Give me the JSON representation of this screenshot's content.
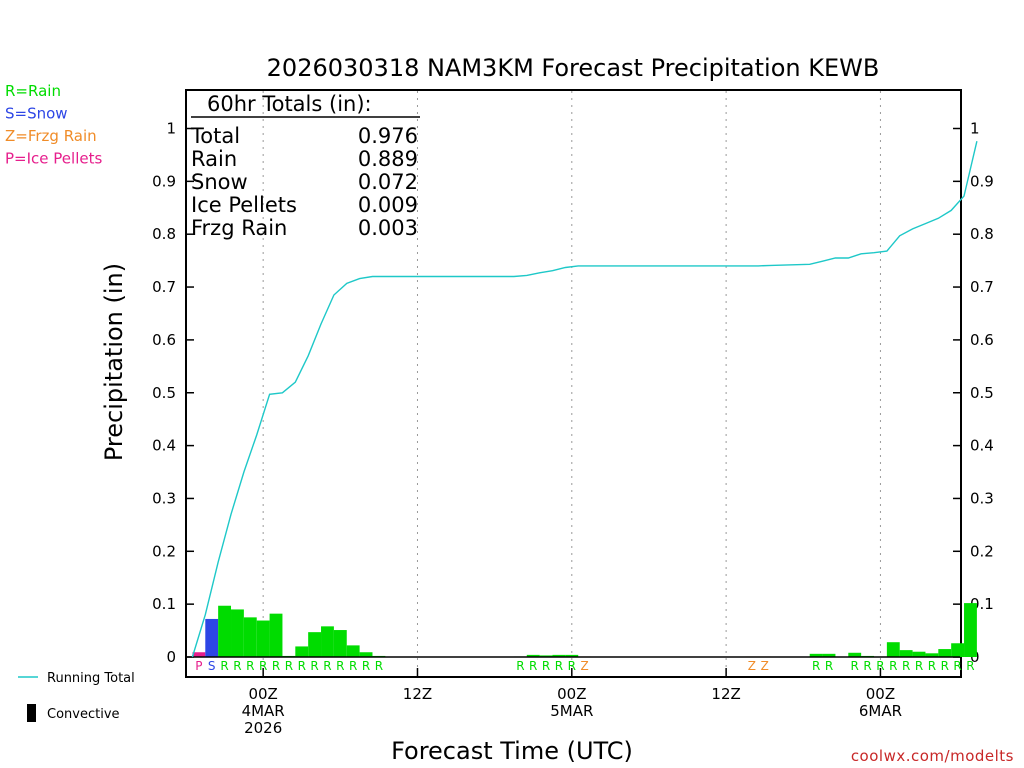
{
  "chart_data": {
    "type": "bar",
    "title": "2026030318 NAM3KM Forecast Precipitation KEWB",
    "xlabel": "Forecast Time (UTC)",
    "ylabel": "Precipitation (in)",
    "ylim": [
      0,
      1.05
    ],
    "yticks": [
      0,
      0.1,
      0.2,
      0.3,
      0.4,
      0.5,
      0.6,
      0.7,
      0.8,
      0.9,
      1
    ],
    "ytick_labels": [
      "0",
      "0.1",
      "0.2",
      "0.3",
      "0.4",
      "0.5",
      "0.6",
      "0.7",
      "0.8",
      "0.9",
      "1"
    ],
    "xlim_hours": [
      0,
      60
    ],
    "xticks": [
      {
        "hour": 6,
        "lines": [
          "00Z",
          "4MAR",
          "2026"
        ]
      },
      {
        "hour": 18,
        "lines": [
          "12Z"
        ]
      },
      {
        "hour": 30,
        "lines": [
          "00Z",
          "5MAR"
        ]
      },
      {
        "hour": 42,
        "lines": [
          "12Z"
        ]
      },
      {
        "hour": 54,
        "lines": [
          "00Z",
          "6MAR"
        ]
      }
    ],
    "bars": [
      {
        "hour": 1,
        "value": 0.009,
        "type": "P"
      },
      {
        "hour": 2,
        "value": 0.072,
        "type": "S"
      },
      {
        "hour": 3,
        "value": 0.097,
        "type": "R"
      },
      {
        "hour": 4,
        "value": 0.09,
        "type": "R"
      },
      {
        "hour": 5,
        "value": 0.075,
        "type": "R"
      },
      {
        "hour": 6,
        "value": 0.069,
        "type": "R"
      },
      {
        "hour": 7,
        "value": 0.082,
        "type": "R"
      },
      {
        "hour": 8,
        "value": 0.002,
        "type": "R"
      },
      {
        "hour": 9,
        "value": 0.02,
        "type": "R"
      },
      {
        "hour": 10,
        "value": 0.047,
        "type": "R"
      },
      {
        "hour": 11,
        "value": 0.058,
        "type": "R"
      },
      {
        "hour": 12,
        "value": 0.051,
        "type": "R"
      },
      {
        "hour": 13,
        "value": 0.022,
        "type": "R"
      },
      {
        "hour": 14,
        "value": 0.009,
        "type": "R"
      },
      {
        "hour": 15,
        "value": 0.002,
        "type": "R"
      },
      {
        "hour": 26,
        "value": 0.001,
        "type": "R"
      },
      {
        "hour": 27,
        "value": 0.004,
        "type": "R"
      },
      {
        "hour": 28,
        "value": 0.003,
        "type": "R"
      },
      {
        "hour": 29,
        "value": 0.004,
        "type": "R"
      },
      {
        "hour": 30,
        "value": 0.004,
        "type": "R"
      },
      {
        "hour": 31,
        "value": 0.001,
        "type": "Z"
      },
      {
        "hour": 44,
        "value": 0.001,
        "type": "Z"
      },
      {
        "hour": 45,
        "value": 0.001,
        "type": "Z"
      },
      {
        "hour": 49,
        "value": 0.006,
        "type": "R"
      },
      {
        "hour": 50,
        "value": 0.006,
        "type": "R"
      },
      {
        "hour": 52,
        "value": 0.008,
        "type": "R"
      },
      {
        "hour": 53,
        "value": 0.002,
        "type": "R"
      },
      {
        "hour": 54,
        "value": 0.001,
        "type": "R"
      },
      {
        "hour": 55,
        "value": 0.028,
        "type": "R"
      },
      {
        "hour": 56,
        "value": 0.013,
        "type": "R"
      },
      {
        "hour": 57,
        "value": 0.01,
        "type": "R"
      },
      {
        "hour": 58,
        "value": 0.007,
        "type": "R"
      },
      {
        "hour": 59,
        "value": 0.015,
        "type": "R"
      },
      {
        "hour": 60,
        "value": 0.026,
        "type": "R"
      },
      {
        "hour": 61,
        "value": 0.102,
        "type": "R"
      }
    ],
    "running_total": [
      [
        0.5,
        0.0
      ],
      [
        1.5,
        0.08
      ],
      [
        2.5,
        0.18
      ],
      [
        3.5,
        0.27
      ],
      [
        4.5,
        0.35
      ],
      [
        5.5,
        0.42
      ],
      [
        6.5,
        0.497
      ],
      [
        7.5,
        0.5
      ],
      [
        8.5,
        0.52
      ],
      [
        9.5,
        0.57
      ],
      [
        10.5,
        0.63
      ],
      [
        11.5,
        0.685
      ],
      [
        12.5,
        0.707
      ],
      [
        13.5,
        0.716
      ],
      [
        14.5,
        0.72
      ],
      [
        15.5,
        0.72
      ],
      [
        25.5,
        0.72
      ],
      [
        26.5,
        0.722
      ],
      [
        27.5,
        0.727
      ],
      [
        28.5,
        0.731
      ],
      [
        29.5,
        0.737
      ],
      [
        30.5,
        0.74
      ],
      [
        44.5,
        0.74
      ],
      [
        45.5,
        0.741
      ],
      [
        48.5,
        0.743
      ],
      [
        49.5,
        0.749
      ],
      [
        50.5,
        0.755
      ],
      [
        51.5,
        0.755
      ],
      [
        52.5,
        0.763
      ],
      [
        53.5,
        0.765
      ],
      [
        54.5,
        0.768
      ],
      [
        55.5,
        0.797
      ],
      [
        56.5,
        0.81
      ],
      [
        57.5,
        0.82
      ],
      [
        58.5,
        0.83
      ],
      [
        59.5,
        0.845
      ],
      [
        60.5,
        0.872
      ],
      [
        61.5,
        0.976
      ]
    ],
    "totals_box": {
      "title": "60hr Totals (in):",
      "rows": [
        {
          "label": "Total",
          "value": "0.976"
        },
        {
          "label": "Rain",
          "value": "0.889"
        },
        {
          "label": "Snow",
          "value": "0.072"
        },
        {
          "label": "Ice Pellets",
          "value": "0.009"
        },
        {
          "label": "Frzg Rain",
          "value": "0.003"
        }
      ]
    },
    "type_legend": [
      {
        "code": "R",
        "text": "R=Rain",
        "color": "#00dc00"
      },
      {
        "code": "S",
        "text": "S=Snow",
        "color": "#2d46e6"
      },
      {
        "code": "Z",
        "text": "Z=Frzg Rain",
        "color": "#f08c28"
      },
      {
        "code": "P",
        "text": "P=Ice Pellets",
        "color": "#e61e8c"
      }
    ],
    "series_legend": {
      "running_total": "Running Total",
      "convective": "Convective"
    },
    "colors": {
      "R": "#00dc00",
      "S": "#2d46e6",
      "Z": "#f08c28",
      "P": "#e61e8c",
      "running_total": "#1ec8c8",
      "credit": "#c82828"
    },
    "credit": "coolwx.com/modelts"
  }
}
